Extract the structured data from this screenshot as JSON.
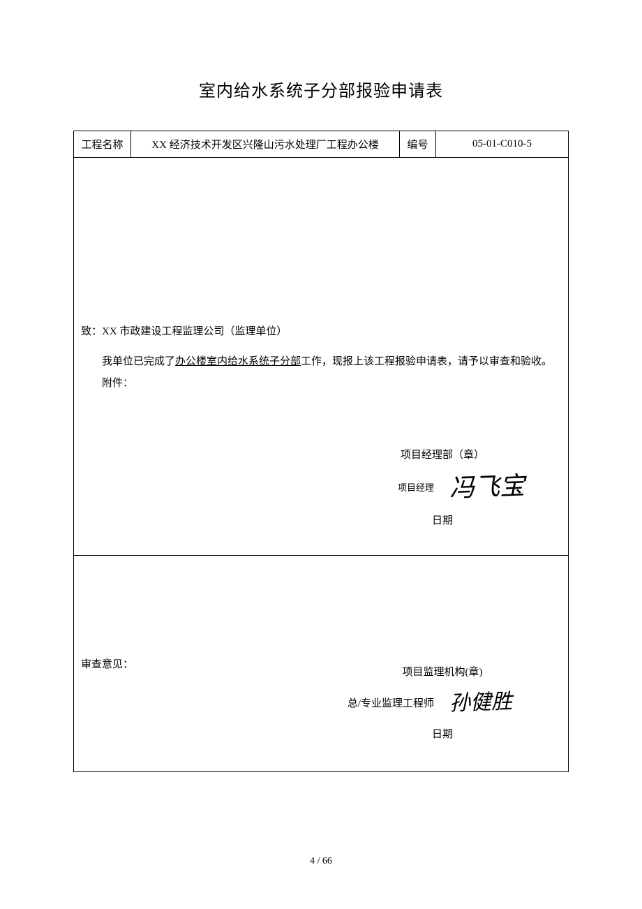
{
  "title": "室内给水系统子分部报验申请表",
  "header": {
    "project_label": "工程名称",
    "project_name": "XX 经济技术开发区兴隆山污水处理厂工程办公楼",
    "code_label": "编号",
    "code_value": "05-01-C010-5"
  },
  "body": {
    "recipient": "致：XX 市政建设工程监理公司（监理单位）",
    "statement_prefix": "我单位已完成了",
    "statement_underlined": "办公楼室内给水系统子分部",
    "statement_suffix": "工作，现报上该工程报验申请表，请予以审查和验收。",
    "attachment_label": "附件：",
    "sig1_dept": "项目经理部（章）",
    "sig1_role": "项目经理",
    "sig1_signature": "冯飞宝",
    "sig1_date_label": "日期"
  },
  "review": {
    "header": "审查意见：",
    "sig2_org": "项目监理机构(章)",
    "sig2_role": "总/专业监理工程师",
    "sig2_signature": "孙健胜",
    "sig2_date_label": "日期"
  },
  "page_number": "4 / 66",
  "colors": {
    "text": "#000000",
    "background": "#ffffff",
    "border": "#000000"
  },
  "typography": {
    "title_fontsize": 24,
    "body_fontsize": 15,
    "signature_fontsize": 36,
    "font_family": "SimSun"
  }
}
